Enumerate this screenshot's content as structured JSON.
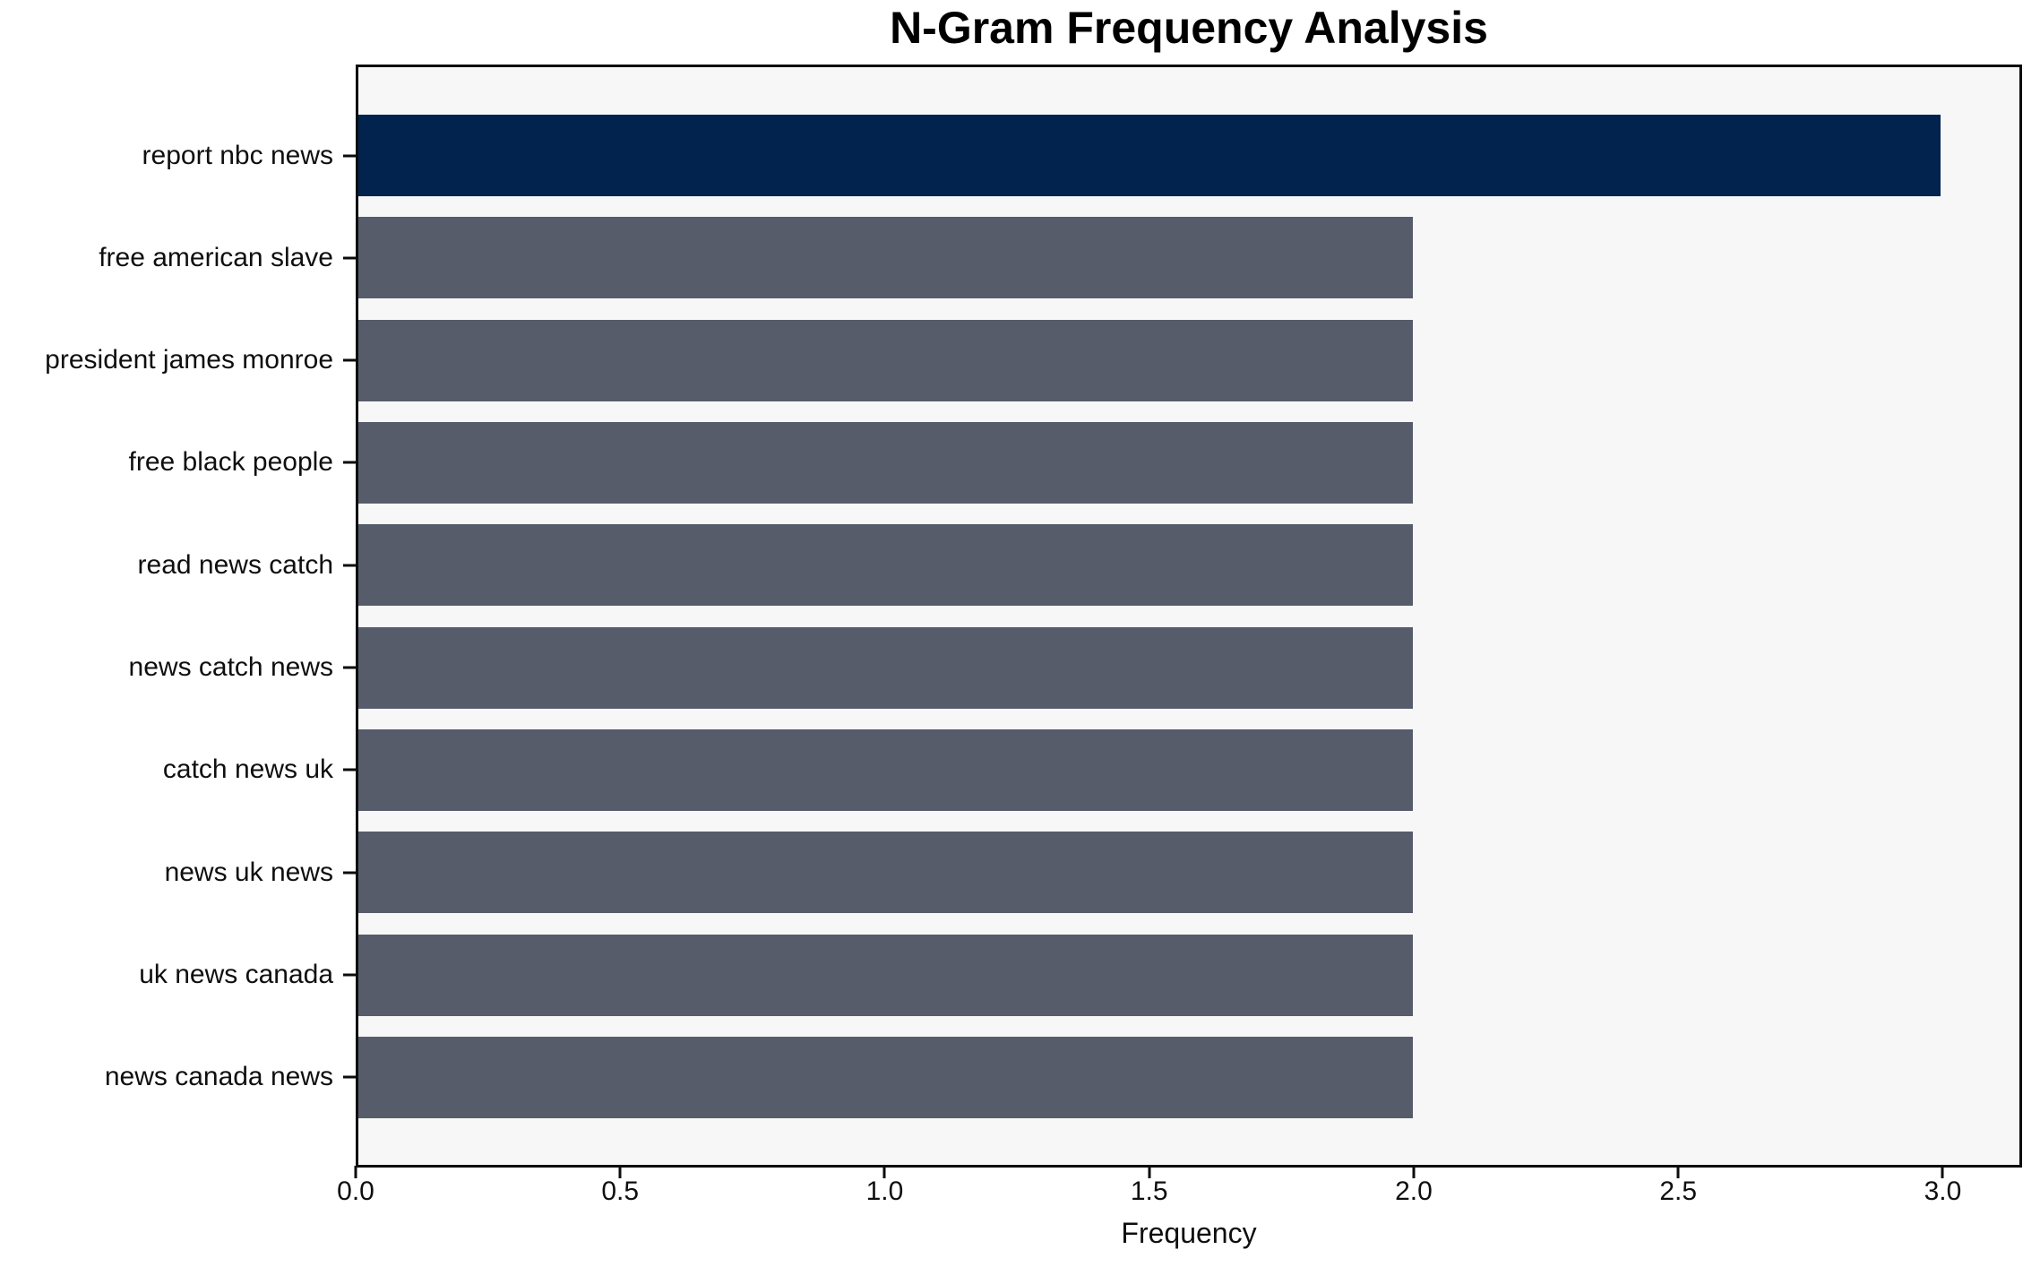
{
  "chart_data": {
    "type": "bar",
    "orientation": "horizontal",
    "title": "N-Gram Frequency Analysis",
    "xlabel": "Frequency",
    "ylabel": "",
    "categories": [
      "report nbc news",
      "free american slave",
      "president james monroe",
      "free black people",
      "read news catch",
      "news catch news",
      "catch news uk",
      "news uk news",
      "uk news canada",
      "news canada news"
    ],
    "values": [
      3,
      2,
      2,
      2,
      2,
      2,
      2,
      2,
      2,
      2
    ],
    "colors": [
      "#02234d",
      "#565c6a",
      "#565c6a",
      "#565c6a",
      "#565c6a",
      "#565c6a",
      "#565c6a",
      "#565c6a",
      "#565c6a",
      "#565c6a"
    ],
    "xlim": [
      0,
      3.15
    ],
    "xticks": [
      0.0,
      0.5,
      1.0,
      1.5,
      2.0,
      2.5,
      3.0
    ],
    "xtick_labels": [
      "0.0",
      "0.5",
      "1.0",
      "1.5",
      "2.0",
      "2.5",
      "3.0"
    ],
    "grid": false,
    "legend": false,
    "plot_background": "#f7f7f7",
    "figure_background": "#ffffff",
    "highlight_color": "#02234d",
    "default_bar_color": "#565c6a"
  }
}
